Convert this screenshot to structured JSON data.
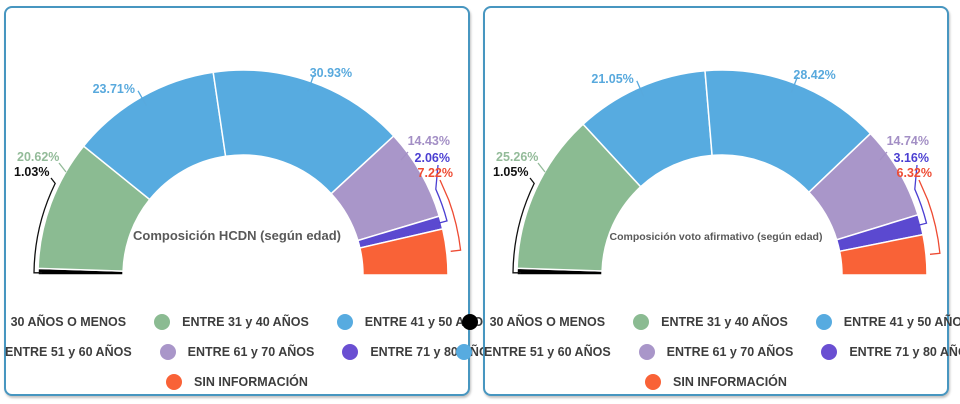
{
  "styles": {
    "card_border": "#4796c0",
    "title_color": "#595959",
    "legend_text_color": "#3d3d3d",
    "segment_divider": "#ffffff"
  },
  "legend": {
    "items": [
      {
        "label": "30 AÑOS O MENOS",
        "color": "#000000"
      },
      {
        "label": "ENTRE 31 y 40 AÑOS",
        "color": "#8bbb92"
      },
      {
        "label": "ENTRE 41 y 50 AÑOS",
        "color": "#57abe0"
      },
      {
        "label": "ENTRE 51 y 60 AÑOS",
        "color": "#57abe0"
      },
      {
        "label": "ENTRE 61 y 70 AÑOS",
        "color": "#a996c9"
      },
      {
        "label": "ENTRE 71 y 80 AÑOS",
        "color": "#6a4fd2"
      },
      {
        "label": "SIN INFORMACIÓN",
        "color": "#f96237"
      }
    ],
    "rows": [
      [
        0,
        1,
        2
      ],
      [
        3,
        4,
        5
      ],
      [
        6
      ]
    ]
  },
  "chart_data": [
    {
      "type": "pie",
      "subtype": "half_donut_gauge",
      "title": "Composición HCDN (según edad)",
      "angle_span_deg": 180,
      "legend_position": "bottom",
      "categories": [
        "30 AÑOS O MENOS",
        "ENTRE 31 y 40 AÑOS",
        "ENTRE 41 y 50 AÑOS",
        "ENTRE 51 y 60 AÑOS",
        "ENTRE 61 y 70 AÑOS",
        "ENTRE 71 y 80 AÑOS",
        "SIN INFORMACIÓN"
      ],
      "values": [
        1.03,
        20.62,
        23.71,
        30.93,
        14.43,
        2.06,
        7.22
      ],
      "labels": [
        "1.03%",
        "20.62%",
        "23.71%",
        "30.93%",
        "14.43%",
        "2.06%",
        "7.22%"
      ],
      "colors": [
        "#000000",
        "#8bbb92",
        "#57abe0",
        "#57abe0",
        "#a996c9",
        "#5b49d0",
        "#f96237"
      ],
      "label_colors": [
        "#111111",
        "#93bb99",
        "#58a9dd",
        "#58a9dd",
        "#a38fc5",
        "#4b3fd2",
        "#ee4b33"
      ]
    },
    {
      "type": "pie",
      "subtype": "half_donut_gauge",
      "title": "Composición voto afirmativo (según edad)",
      "angle_span_deg": 180,
      "legend_position": "bottom",
      "categories": [
        "30 AÑOS O MENOS",
        "ENTRE 31 y 40 AÑOS",
        "ENTRE 41 y 50 AÑOS",
        "ENTRE 51 y 60 AÑOS",
        "ENTRE 61 y 70 AÑOS",
        "ENTRE 71 y 80 AÑOS",
        "SIN INFORMACIÓN"
      ],
      "values": [
        1.05,
        25.26,
        21.05,
        28.42,
        14.74,
        3.16,
        6.32
      ],
      "labels": [
        "1.05%",
        "25.26%",
        "21.05%",
        "28.42%",
        "14.74%",
        "3.16%",
        "6.32%"
      ],
      "colors": [
        "#000000",
        "#8bbb92",
        "#57abe0",
        "#57abe0",
        "#a996c9",
        "#5b49d0",
        "#f96237"
      ],
      "label_colors": [
        "#111111",
        "#93bb99",
        "#58a9dd",
        "#58a9dd",
        "#a38fc5",
        "#4b3fd2",
        "#ee4b33"
      ]
    }
  ]
}
